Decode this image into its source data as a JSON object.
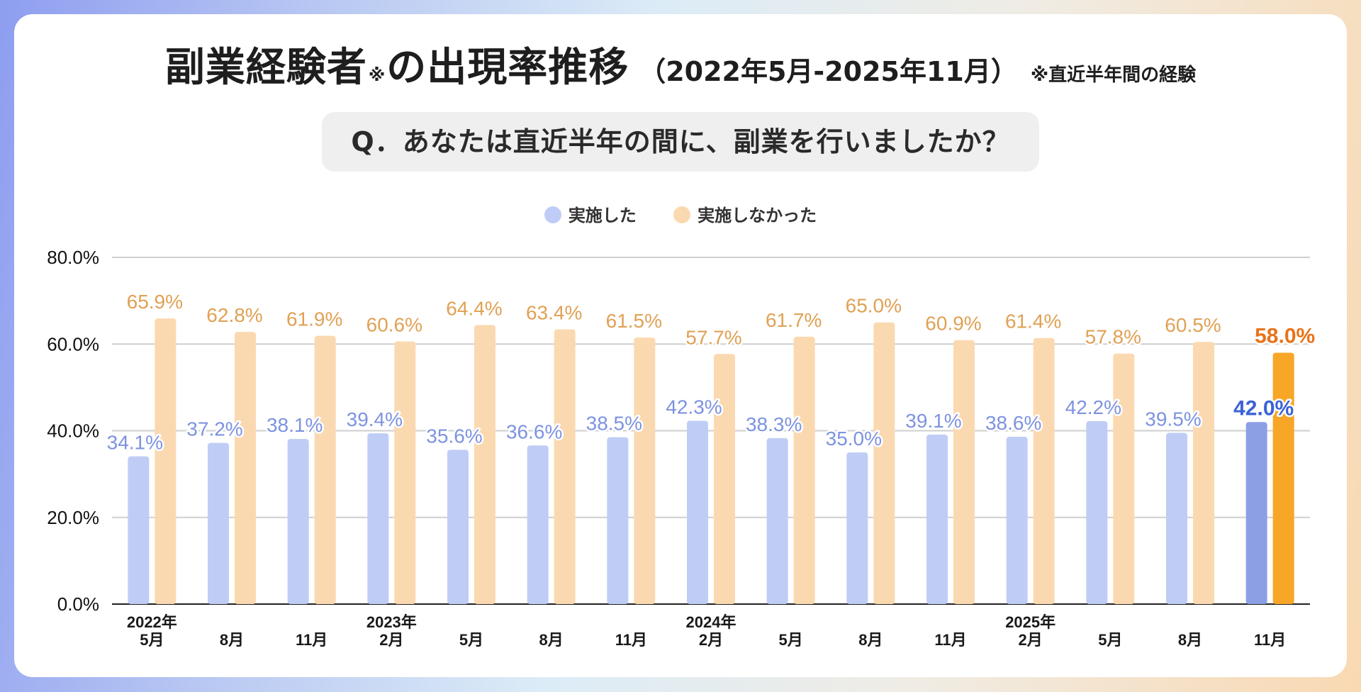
{
  "title": {
    "main": "副業経験者",
    "mark": "※",
    "main2": "の出現率推移",
    "period": "（2022年5月-2025年11月）",
    "note": "※直近半年間の経験"
  },
  "question": "Q．あなたは直近半年の間に、副業を行いましたか？",
  "colors": {
    "did": "#bfcdf6",
    "did_label": "#7d93e0",
    "did_highlight": "#8c9fe5",
    "did_highlight_label": "#3b63d6",
    "didnot": "#fbd9b0",
    "didnot_label": "#e0a155",
    "didnot_highlight": "#f8a628",
    "didnot_highlight_label": "#e8731a",
    "grid": "#cfcfcf",
    "axis": "#222222"
  },
  "chart_data": {
    "type": "bar",
    "title": "副業経験者※の出現率推移（2022年5月-2025年11月）",
    "xlabel": "",
    "ylabel": "",
    "ylim": [
      0,
      80
    ],
    "yticks": [
      "0.0%",
      "20.0%",
      "40.0%",
      "60.0%",
      "80.0%"
    ],
    "legend_position": "top",
    "categories": [
      {
        "year": "2022年",
        "month": "5月"
      },
      {
        "year": "",
        "month": "8月"
      },
      {
        "year": "",
        "month": "11月"
      },
      {
        "year": "2023年",
        "month": "2月"
      },
      {
        "year": "",
        "month": "5月"
      },
      {
        "year": "",
        "month": "8月"
      },
      {
        "year": "",
        "month": "11月"
      },
      {
        "year": "2024年",
        "month": "2月"
      },
      {
        "year": "",
        "month": "5月"
      },
      {
        "year": "",
        "month": "8月"
      },
      {
        "year": "",
        "month": "11月"
      },
      {
        "year": "2025年",
        "month": "2月"
      },
      {
        "year": "",
        "month": "5月"
      },
      {
        "year": "",
        "month": "8月"
      },
      {
        "year": "",
        "month": "11月"
      }
    ],
    "series": [
      {
        "name": "実施した",
        "values": [
          34.1,
          37.2,
          38.1,
          39.4,
          35.6,
          36.6,
          38.5,
          42.3,
          38.3,
          35.0,
          39.1,
          38.6,
          42.2,
          39.5,
          42.0
        ]
      },
      {
        "name": "実施しなかった",
        "values": [
          65.9,
          62.8,
          61.9,
          60.6,
          64.4,
          63.4,
          61.5,
          57.7,
          61.7,
          65.0,
          60.9,
          61.4,
          57.8,
          60.5,
          58.0
        ]
      }
    ],
    "highlight_index": 14
  }
}
